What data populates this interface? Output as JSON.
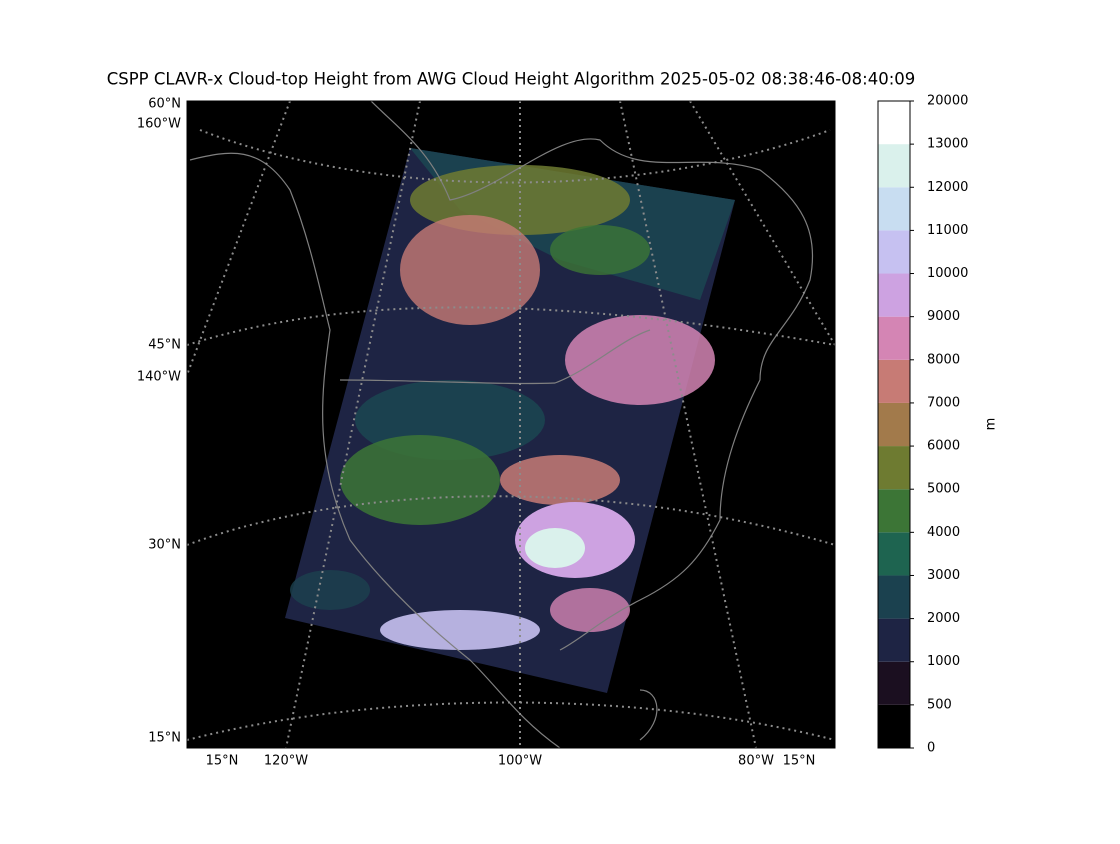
{
  "title": "CSPP CLAVR-x Cloud-top Height from AWG Cloud Height Algorithm 2025-05-02 08:38:46-08:40:09",
  "map": {
    "left_labels": [
      "60°N",
      "160°W",
      "45°N",
      "140°W",
      "30°N",
      "15°N"
    ],
    "bottom_labels": [
      "15°N",
      "120°W",
      "100°W",
      "80°W",
      "15°N"
    ]
  },
  "colorbar": {
    "label": "m",
    "ticks": [
      0,
      500,
      1000,
      2000,
      3000,
      4000,
      5000,
      6000,
      7000,
      8000,
      9000,
      10000,
      11000,
      12000,
      13000,
      20000
    ],
    "colors": [
      "#000000",
      "#1b0f20",
      "#1e2444",
      "#1b414f",
      "#1e6450",
      "#3c7536",
      "#6e7b31",
      "#a27a4b",
      "#c77b75",
      "#d485b4",
      "#cda2e1",
      "#c6c1f1",
      "#c8ddf1",
      "#daf1ec",
      "#ffffff"
    ]
  }
}
